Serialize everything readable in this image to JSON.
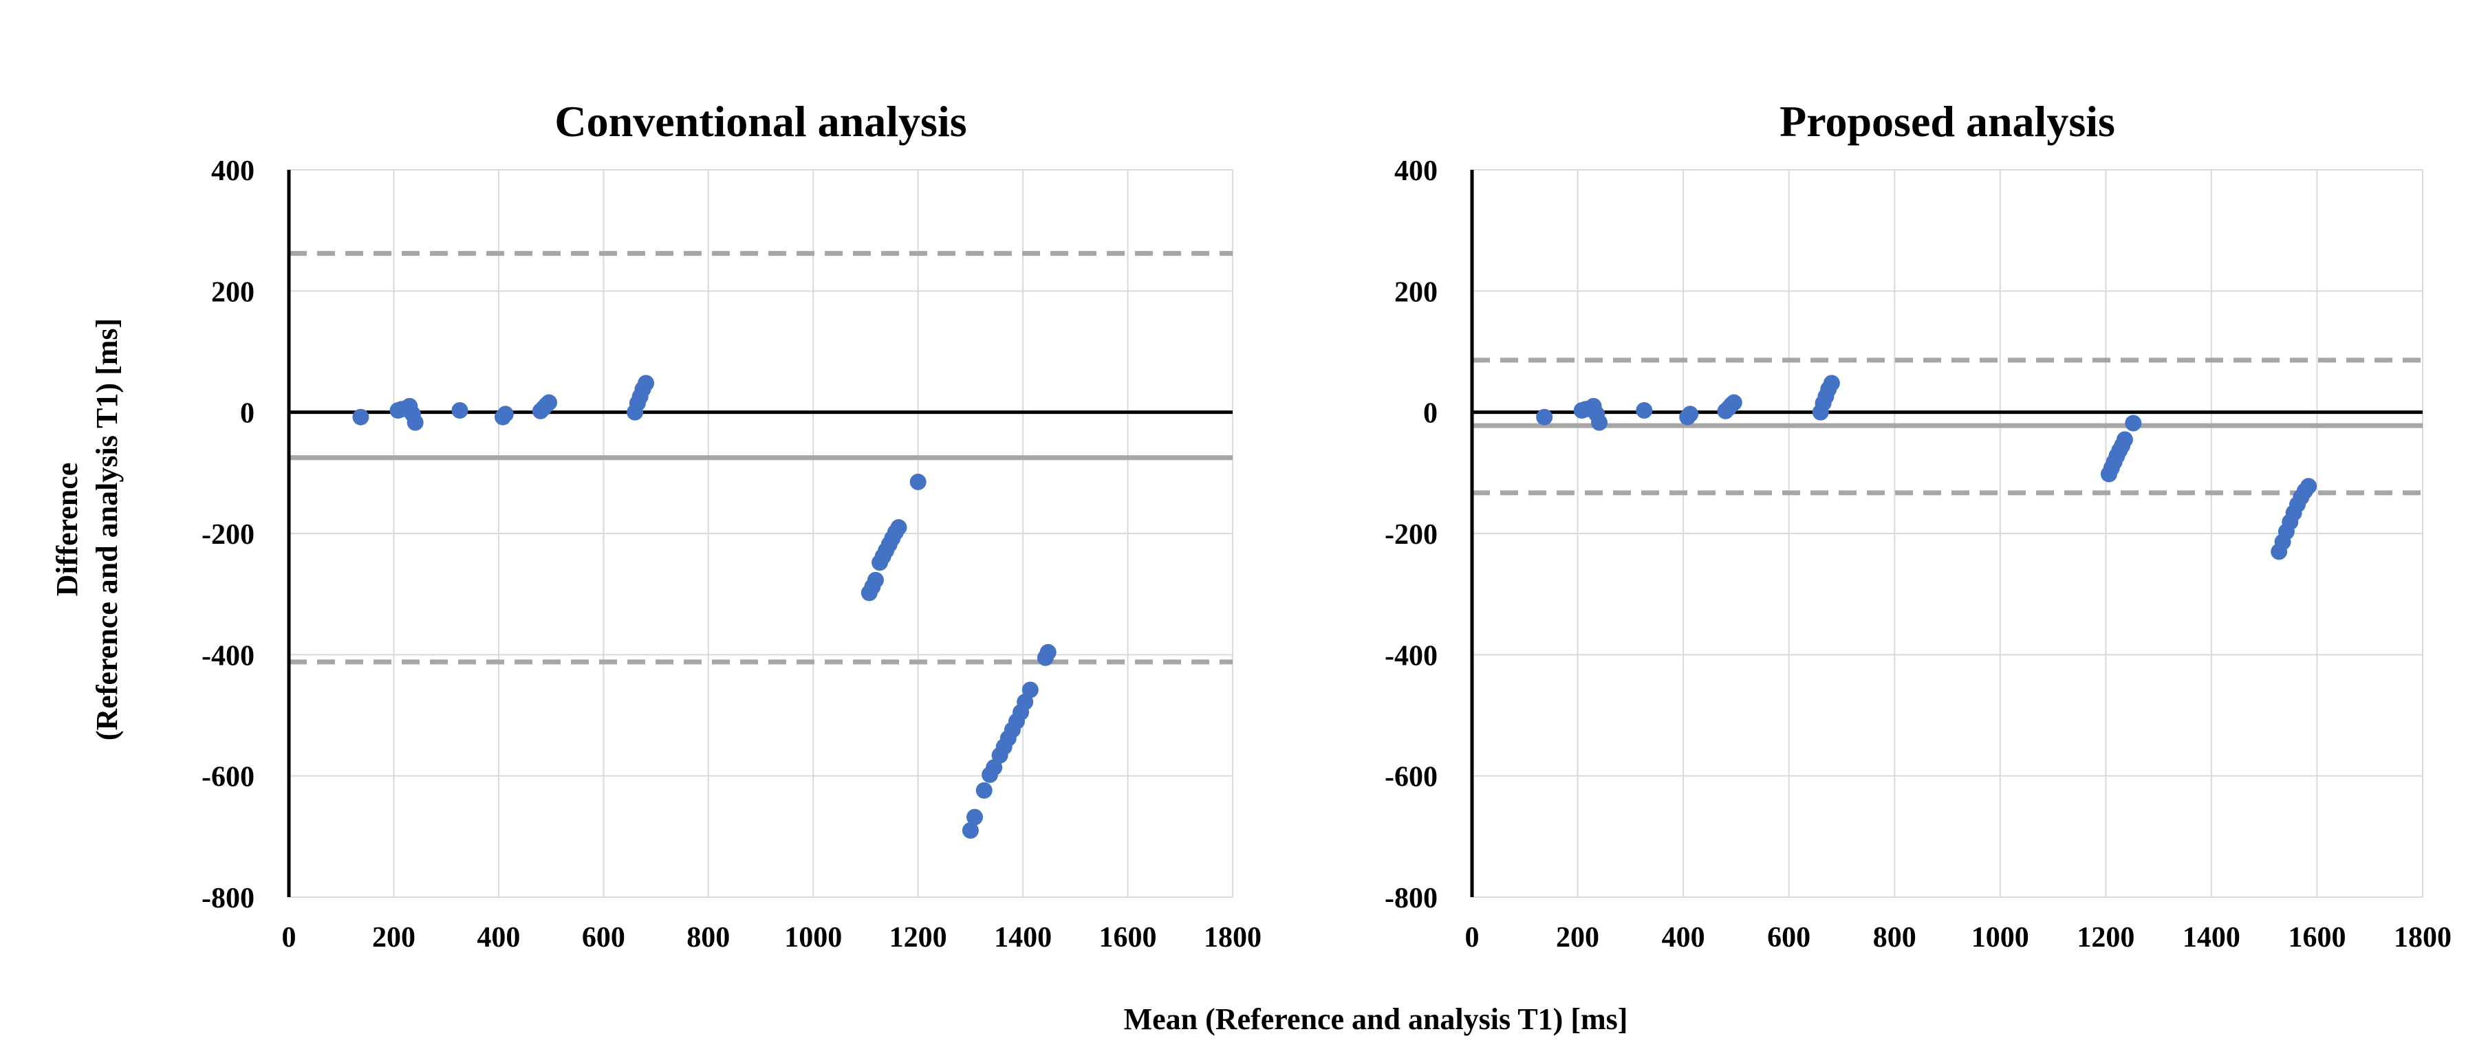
{
  "figure": {
    "ylabel_line1": "Difference",
    "ylabel_line2": "(Reference and analysis T1) [ms]",
    "xlabel": "Mean (Reference and analysis T1) [ms]"
  },
  "chart_data": [
    {
      "type": "scatter",
      "title": "Conventional analysis",
      "xlim": [
        0,
        1800
      ],
      "ylim": [
        -800,
        400
      ],
      "x_ticks": [
        "0",
        "200",
        "400",
        "600",
        "800",
        "1000",
        "1200",
        "1400",
        "1600",
        "1800"
      ],
      "y_ticks": [
        "400",
        "200",
        "0",
        "-200",
        "-400",
        "-600",
        "-800"
      ],
      "grid": true,
      "point_color": "#4472c4",
      "mean_line": {
        "y": -75,
        "color": "#a6a6a6"
      },
      "limits_of_agreement": [
        262,
        -412
      ],
      "zero_line_color": "#000000",
      "series": [
        {
          "x": [
            137,
            208,
            215,
            222,
            230,
            236,
            241,
            326,
            408,
            413,
            480,
            486,
            491,
            496,
            660,
            665,
            670,
            675,
            681,
            1107,
            1113,
            1119,
            1127,
            1133,
            1139,
            1145,
            1151,
            1157,
            1163,
            1200,
            1300,
            1308,
            1326,
            1337,
            1345,
            1356,
            1364,
            1372,
            1380,
            1388,
            1396,
            1404,
            1414,
            1443,
            1448
          ],
          "y": [
            -8,
            3,
            5,
            6,
            10,
            -3,
            -17,
            3,
            -8,
            -3,
            2,
            7,
            12,
            16,
            0,
            15,
            26,
            38,
            48,
            -298,
            -288,
            -277,
            -248,
            -238,
            -228,
            -218,
            -208,
            -198,
            -190,
            -115,
            -690,
            -668,
            -624,
            -598,
            -586,
            -566,
            -552,
            -538,
            -524,
            -510,
            -495,
            -478,
            -458,
            -405,
            -396
          ]
        }
      ]
    },
    {
      "type": "scatter",
      "title": "Proposed analysis",
      "xlim": [
        0,
        1800
      ],
      "ylim": [
        -800,
        400
      ],
      "x_ticks": [
        "0",
        "200",
        "400",
        "600",
        "800",
        "1000",
        "1200",
        "1400",
        "1600",
        "1800"
      ],
      "y_ticks": [
        "400",
        "200",
        "0",
        "-200",
        "-400",
        "-600",
        "-800"
      ],
      "grid": true,
      "point_color": "#4472c4",
      "mean_line": {
        "y": -22,
        "color": "#a6a6a6"
      },
      "limits_of_agreement": [
        86,
        -133
      ],
      "zero_line_color": "#000000",
      "series": [
        {
          "x": [
            137,
            208,
            215,
            222,
            230,
            236,
            241,
            326,
            408,
            413,
            480,
            486,
            491,
            496,
            660,
            665,
            670,
            675,
            681,
            1206,
            1211,
            1216,
            1221,
            1226,
            1231,
            1236,
            1252,
            1528,
            1535,
            1542,
            1549,
            1556,
            1563,
            1570,
            1577,
            1584
          ],
          "y": [
            -8,
            3,
            5,
            6,
            10,
            -3,
            -17,
            3,
            -8,
            -3,
            2,
            7,
            12,
            16,
            0,
            15,
            26,
            38,
            48,
            -102,
            -92,
            -82,
            -72,
            -63,
            -55,
            -45,
            -18,
            -230,
            -214,
            -197,
            -181,
            -166,
            -152,
            -140,
            -130,
            -122
          ]
        }
      ]
    }
  ]
}
